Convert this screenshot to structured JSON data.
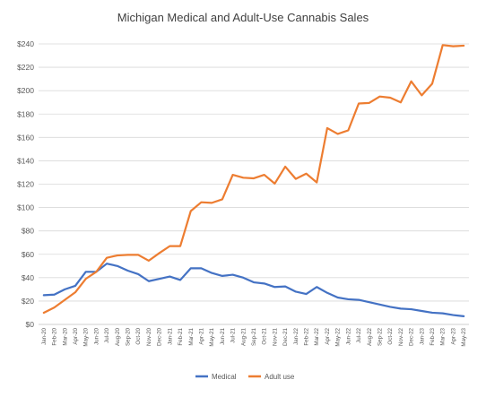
{
  "chart_data": {
    "type": "line",
    "title": "Michigan Medical and Adult-Use Cannabis Sales",
    "xlabel": "",
    "ylabel": "",
    "ylim": [
      0,
      240
    ],
    "yticks": [
      0,
      20,
      40,
      60,
      80,
      100,
      120,
      140,
      160,
      180,
      200,
      220,
      240
    ],
    "ytick_labels": [
      "$0",
      "$20",
      "$40",
      "$60",
      "$80",
      "$100",
      "$120",
      "$140",
      "$160",
      "$180",
      "$200",
      "$220",
      "$240"
    ],
    "grid": true,
    "legend_position": "bottom",
    "categories": [
      "Jan-20",
      "Feb-20",
      "Mar-20",
      "Apr-20",
      "May-20",
      "Jun-20",
      "Jul-20",
      "Aug-20",
      "Sep-20",
      "Oct-20",
      "Nov-20",
      "Dec-20",
      "Jan-21",
      "Feb-21",
      "Mar-21",
      "Apr-21",
      "May-21",
      "Jun-21",
      "Jul-21",
      "Aug-21",
      "Sep-21",
      "Oct-21",
      "Nov-21",
      "Dec-21",
      "Jan-22",
      "Feb-22",
      "Mar-22",
      "Apr-22",
      "May-22",
      "Jun-22",
      "Jul-22",
      "Aug-22",
      "Sep-22",
      "Oct-22",
      "Nov-22",
      "Dec-22",
      "Jan-23",
      "Feb-23",
      "Mar-23",
      "Apr-23",
      "May-23"
    ],
    "series": [
      {
        "name": "Medical",
        "color": "#4472C4",
        "values": [
          25,
          25.5,
          30,
          33,
          45,
          45,
          52,
          50,
          46,
          43,
          37,
          39,
          41,
          38,
          48,
          48,
          44,
          41.5,
          42.5,
          40,
          36,
          35,
          32,
          32.5,
          28,
          26,
          32,
          27,
          23,
          21.5,
          21,
          19,
          17,
          15,
          13.5,
          13,
          11.5,
          10,
          9.5,
          8,
          7
        ]
      },
      {
        "name": "Adult use",
        "color": "#ED7D31",
        "values": [
          10,
          14.5,
          21,
          27.5,
          39,
          45,
          57,
          59,
          59.5,
          59.5,
          54.5,
          61,
          67,
          67,
          97,
          104.5,
          104,
          107,
          128,
          125.5,
          125,
          128,
          120.5,
          135,
          124.5,
          129,
          121.5,
          168,
          163,
          166,
          189,
          189.5,
          195,
          194,
          190,
          208,
          196,
          206,
          239,
          238,
          238.5
        ]
      }
    ]
  }
}
